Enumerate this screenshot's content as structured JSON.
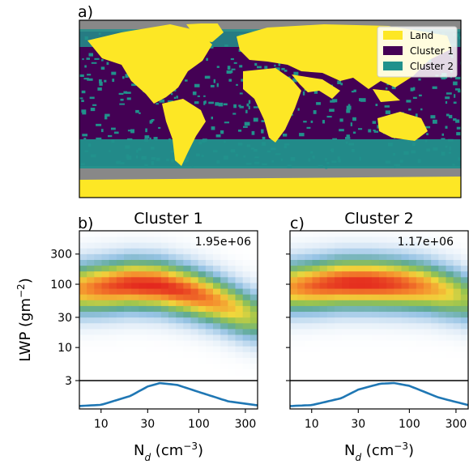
{
  "panel_a": {
    "label": "a)",
    "legend": [
      {
        "name": "Land",
        "color": "#fde725"
      },
      {
        "name": "Cluster 1",
        "color": "#440154"
      },
      {
        "name": "Cluster 2",
        "color": "#21918c"
      }
    ],
    "colors": {
      "no_data": "#888888"
    }
  },
  "panel_b": {
    "label": "b)",
    "title": "Cluster 1",
    "count": "1.95e+06"
  },
  "panel_c": {
    "label": "c)",
    "title": "Cluster 2",
    "count": "1.17e+06"
  },
  "y_axis_label": "LWP (gm⁻²)",
  "x_axis_label": "Nₐ (cm⁻³)",
  "chart_data": [
    {
      "type": "heatmap",
      "panel": "b",
      "title": "Cluster 1",
      "annotation": "1.95e+06",
      "x_scale": "log",
      "y_scale": "log",
      "xlabel": "N_d (cm^-3)",
      "ylabel": "LWP (gm^-2)",
      "x_ticks": [
        10,
        30,
        100,
        300
      ],
      "y_ticks": [
        3,
        10,
        30,
        100,
        300
      ],
      "xlim": [
        6,
        400
      ],
      "ylim": [
        3,
        700
      ],
      "ridge": {
        "x": [
          6,
          10,
          20,
          40,
          80,
          150,
          300,
          400
        ],
        "y": [
          85,
          90,
          100,
          95,
          75,
          55,
          35,
          30
        ]
      },
      "colormap": [
        "white",
        "light blue",
        "green",
        "yellow",
        "orange",
        "red"
      ],
      "marginal_distribution": {
        "x": [
          6,
          10,
          20,
          30,
          40,
          60,
          100,
          200,
          400
        ],
        "density": [
          0.02,
          0.07,
          0.45,
          0.85,
          1.0,
          0.92,
          0.62,
          0.22,
          0.05
        ]
      }
    },
    {
      "type": "heatmap",
      "panel": "c",
      "title": "Cluster 2",
      "annotation": "1.17e+06",
      "x_scale": "log",
      "y_scale": "log",
      "xlabel": "N_d (cm^-3)",
      "x_ticks": [
        10,
        30,
        100,
        300
      ],
      "y_ticks": [
        3,
        10,
        30,
        100,
        300
      ],
      "xlim": [
        6,
        400
      ],
      "ylim": [
        3,
        700
      ],
      "ridge": {
        "x": [
          6,
          10,
          20,
          40,
          80,
          150,
          300,
          400
        ],
        "y": [
          90,
          95,
          105,
          105,
          100,
          90,
          70,
          60
        ]
      },
      "colormap": [
        "white",
        "light blue",
        "green",
        "yellow",
        "orange",
        "red"
      ],
      "marginal_distribution": {
        "x": [
          6,
          10,
          20,
          30,
          50,
          70,
          100,
          200,
          400
        ],
        "density": [
          0.02,
          0.06,
          0.35,
          0.72,
          0.97,
          1.0,
          0.88,
          0.38,
          0.06
        ]
      }
    }
  ]
}
